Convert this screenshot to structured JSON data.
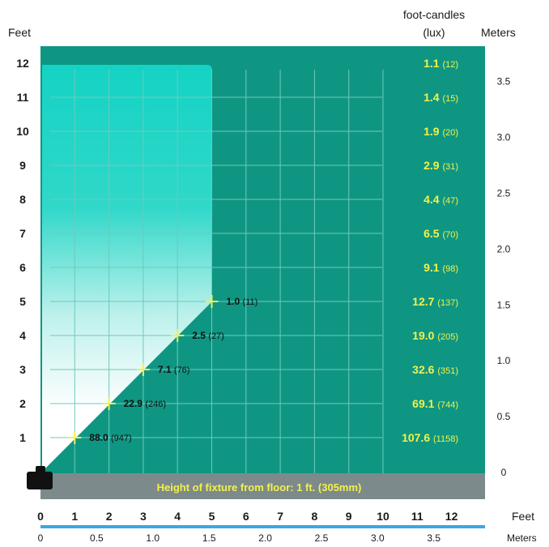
{
  "labels": {
    "feet_top": "Feet",
    "fc_header_line1": "foot-candles",
    "fc_header_line2": "(lux)",
    "meters_right": "Meters",
    "feet_bottom": "Feet",
    "meters_bottom": "Meters",
    "footer_caption": "Height of fixture from floor: 1 ft. (305mm)"
  },
  "colors": {
    "field": "#0E9683",
    "cone_top": "#14D3C4",
    "cone_bottom": "#FFFFFF",
    "grid": "#6FC9BC",
    "readout_yellow": "#F3F14A",
    "caption_band": "#7C8A8C",
    "meters_bar": "#3AA7E2",
    "text_dark": "#1A1A1A"
  },
  "left_axis_feet": [
    "1",
    "2",
    "3",
    "4",
    "5",
    "6",
    "7",
    "8",
    "9",
    "10",
    "11",
    "12"
  ],
  "right_axis_meters": [
    "0",
    "0.5",
    "1.0",
    "1.5",
    "2.0",
    "2.5",
    "3.0",
    "3.5"
  ],
  "bottom_axis_feet": [
    "0",
    "1",
    "2",
    "3",
    "4",
    "5",
    "6",
    "7",
    "8",
    "9",
    "10",
    "11",
    "12"
  ],
  "bottom_axis_meters": [
    "0",
    "0.5",
    "1.0",
    "1.5",
    "2.0",
    "2.5",
    "3.0",
    "3.5"
  ],
  "illuminance_readouts": [
    {
      "height_ft": 12,
      "fc": "1.1",
      "lux": "(12)"
    },
    {
      "height_ft": 11,
      "fc": "1.4",
      "lux": "(15)"
    },
    {
      "height_ft": 10,
      "fc": "1.9",
      "lux": "(20)"
    },
    {
      "height_ft": 9,
      "fc": "2.9",
      "lux": "(31)"
    },
    {
      "height_ft": 8,
      "fc": "4.4",
      "lux": "(47)"
    },
    {
      "height_ft": 7,
      "fc": "6.5",
      "lux": "(70)"
    },
    {
      "height_ft": 6,
      "fc": "9.1",
      "lux": "(98)"
    },
    {
      "height_ft": 5,
      "fc": "12.7",
      "lux": "(137)"
    },
    {
      "height_ft": 4,
      "fc": "19.0",
      "lux": "(205)"
    },
    {
      "height_ft": 3,
      "fc": "32.6",
      "lux": "(351)"
    },
    {
      "height_ft": 2,
      "fc": "69.1",
      "lux": "(744)"
    },
    {
      "height_ft": 1,
      "fc": "107.6",
      "lux": "(1158)"
    }
  ],
  "edge_readouts": [
    {
      "height_ft": 1,
      "x_ft": 1,
      "fc": "88.0",
      "lux": "(947)"
    },
    {
      "height_ft": 2,
      "x_ft": 2,
      "fc": "22.9",
      "lux": "(246)"
    },
    {
      "height_ft": 3,
      "x_ft": 3,
      "fc": "7.1",
      "lux": "(76)"
    },
    {
      "height_ft": 4,
      "x_ft": 4,
      "fc": "2.5",
      "lux": "(27)"
    },
    {
      "height_ft": 5,
      "x_ft": 5,
      "fc": "1.0",
      "lux": "(11)"
    }
  ]
}
